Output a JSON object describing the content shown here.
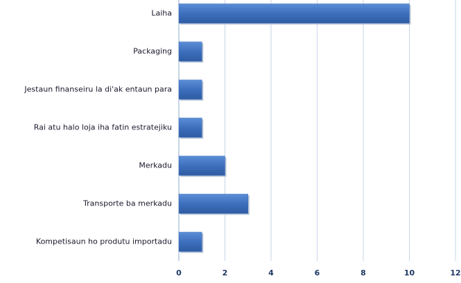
{
  "chart_data": {
    "type": "bar",
    "orientation": "horizontal",
    "categories": [
      "Laiha",
      "Packaging",
      "Jestaun finanseiru la di'ak entaun para",
      "Rai atu halo loja iha fatin estratejiku",
      "Merkadu",
      "Transporte ba merkadu",
      "Kompetisaun ho produtu importadu"
    ],
    "values": [
      10,
      1,
      1,
      1,
      2,
      3,
      1
    ],
    "color": "#3d6fbd",
    "xlim": [
      0,
      12
    ],
    "xticks": [
      0,
      2,
      4,
      6,
      8,
      10,
      12
    ],
    "grid": true
  }
}
